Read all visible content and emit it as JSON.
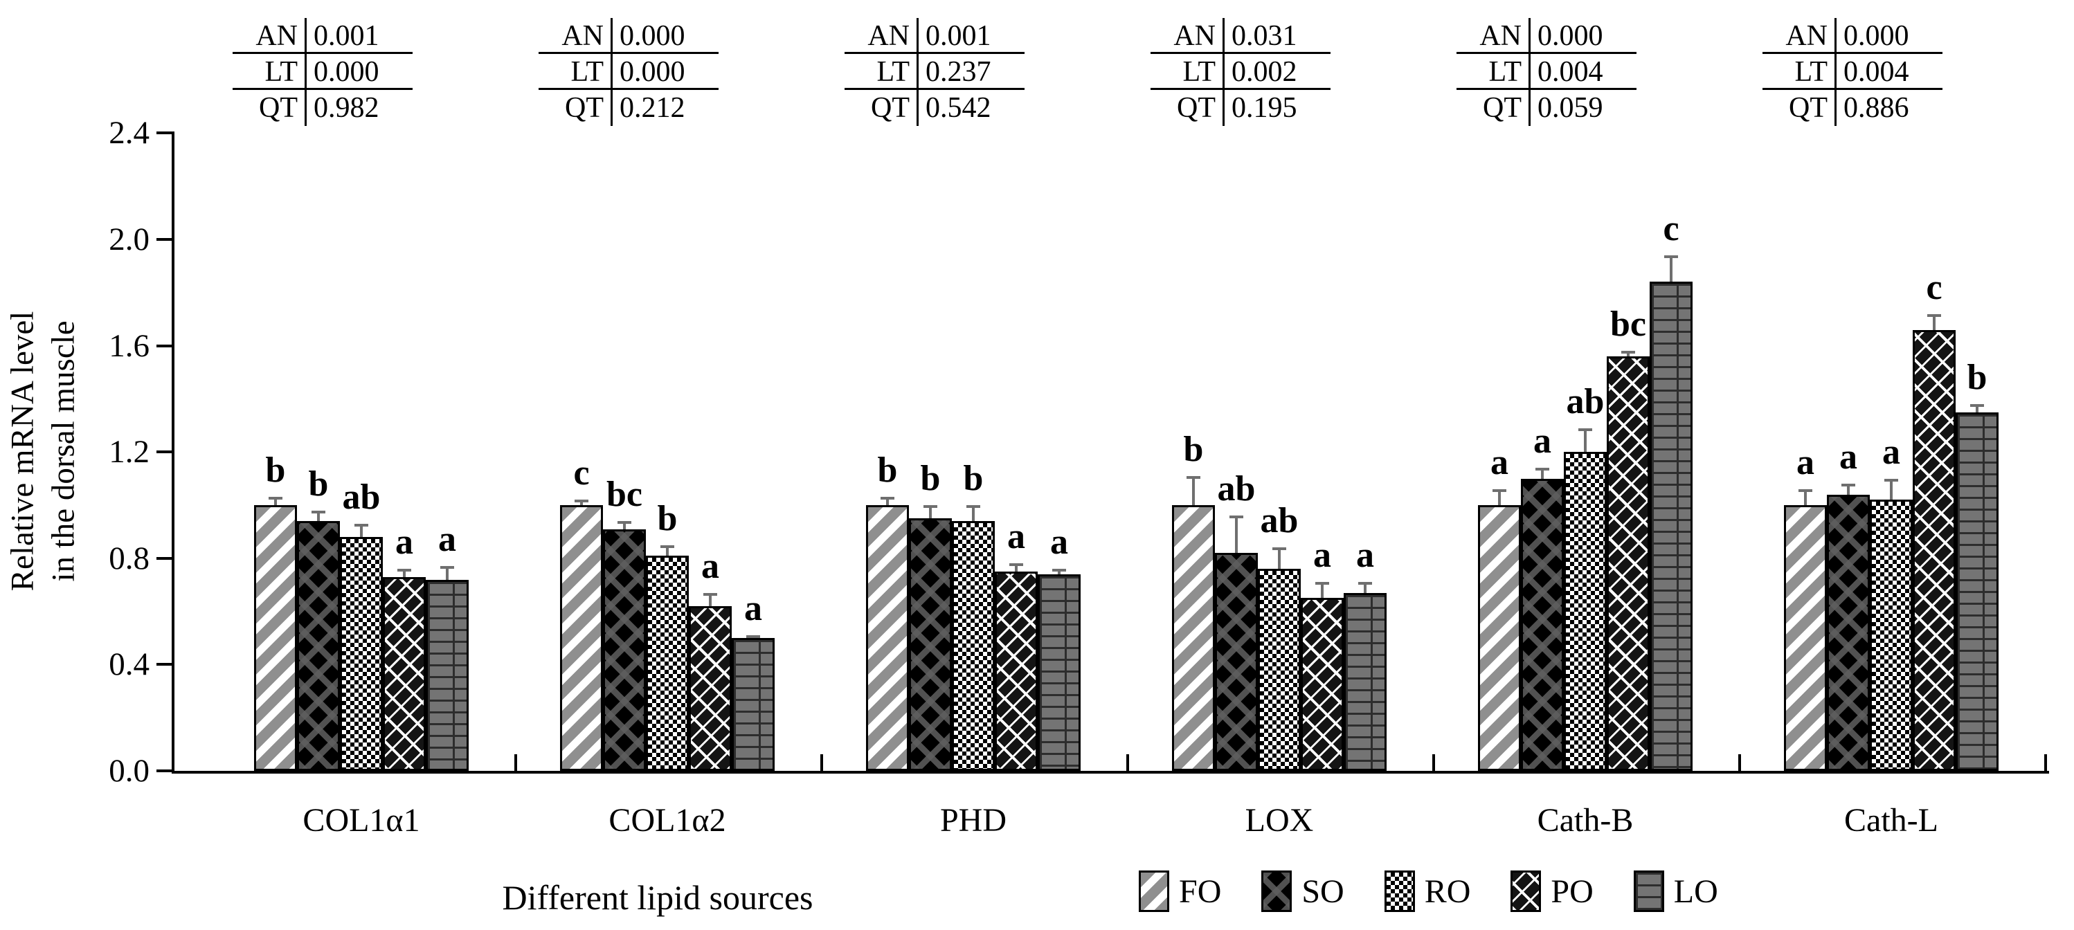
{
  "page": {
    "background": "#ffffff",
    "axis_color": "#000000",
    "error_bar_color": "#6f6f6f"
  },
  "y_axis": {
    "label_line1": "Relative mRNA level",
    "label_line2": "in the dorsal muscle"
  },
  "x_axis": {
    "title": "Different lipid sources"
  },
  "chart_data": {
    "type": "bar",
    "title": "",
    "ylabel": "Relative mRNA level in the dorsal muscle",
    "xlabel": "Different lipid sources",
    "ylim": [
      0,
      2.4
    ],
    "ytick_step": 0.4,
    "yticks": [
      0.0,
      0.4,
      0.8,
      1.2,
      1.6,
      2.0,
      2.4
    ],
    "grid": false,
    "legend_position": "bottom",
    "categories": [
      "COL1α1",
      "COL1α2",
      "PHD",
      "LOX",
      "Cath-B",
      "Cath-L"
    ],
    "series": [
      {
        "name": "FO",
        "pattern": "gray-diagonal-stripes",
        "values": [
          1.0,
          1.0,
          1.0,
          1.0,
          1.0,
          1.0
        ],
        "errors": [
          0.03,
          0.02,
          0.03,
          0.11,
          0.06,
          0.06
        ]
      },
      {
        "name": "SO",
        "pattern": "black-diamond-lattice",
        "values": [
          0.94,
          0.91,
          0.95,
          0.82,
          1.1,
          1.04
        ],
        "errors": [
          0.04,
          0.03,
          0.05,
          0.14,
          0.04,
          0.04
        ]
      },
      {
        "name": "RO",
        "pattern": "checkerboard",
        "values": [
          0.88,
          0.81,
          0.94,
          0.76,
          1.2,
          1.02
        ],
        "errors": [
          0.05,
          0.04,
          0.06,
          0.08,
          0.09,
          0.08
        ]
      },
      {
        "name": "PO",
        "pattern": "black-diagonal-chain",
        "values": [
          0.73,
          0.62,
          0.75,
          0.65,
          1.56,
          1.66
        ],
        "errors": [
          0.03,
          0.05,
          0.03,
          0.06,
          0.02,
          0.06
        ]
      },
      {
        "name": "LO",
        "pattern": "gray-bricks",
        "values": [
          0.72,
          0.5,
          0.74,
          0.67,
          1.84,
          1.35
        ],
        "errors": [
          0.05,
          0.01,
          0.02,
          0.04,
          0.1,
          0.03
        ]
      }
    ],
    "sig_letters": [
      [
        "b",
        "b",
        "ab",
        "a",
        "a"
      ],
      [
        "c",
        "bc",
        "b",
        "a",
        "a"
      ],
      [
        "b",
        "b",
        "b",
        "a",
        "a"
      ],
      [
        "b",
        "ab",
        "ab",
        "a",
        "a"
      ],
      [
        "a",
        "a",
        "ab",
        "bc",
        "c"
      ],
      [
        "a",
        "a",
        "a",
        "c",
        "b"
      ]
    ],
    "stats_tables": [
      {
        "rows": [
          [
            "AN",
            "0.001"
          ],
          [
            "LT",
            "0.000"
          ],
          [
            "QT",
            "0.982"
          ]
        ]
      },
      {
        "rows": [
          [
            "AN",
            "0.000"
          ],
          [
            "LT",
            "0.000"
          ],
          [
            "QT",
            "0.212"
          ]
        ]
      },
      {
        "rows": [
          [
            "AN",
            "0.001"
          ],
          [
            "LT",
            "0.237"
          ],
          [
            "QT",
            "0.542"
          ]
        ]
      },
      {
        "rows": [
          [
            "AN",
            "0.031"
          ],
          [
            "LT",
            "0.002"
          ],
          [
            "QT",
            "0.195"
          ]
        ]
      },
      {
        "rows": [
          [
            "AN",
            "0.000"
          ],
          [
            "LT",
            "0.004"
          ],
          [
            "QT",
            "0.059"
          ]
        ]
      },
      {
        "rows": [
          [
            "AN",
            "0.000"
          ],
          [
            "LT",
            "0.004"
          ],
          [
            "QT",
            "0.886"
          ]
        ]
      }
    ]
  }
}
